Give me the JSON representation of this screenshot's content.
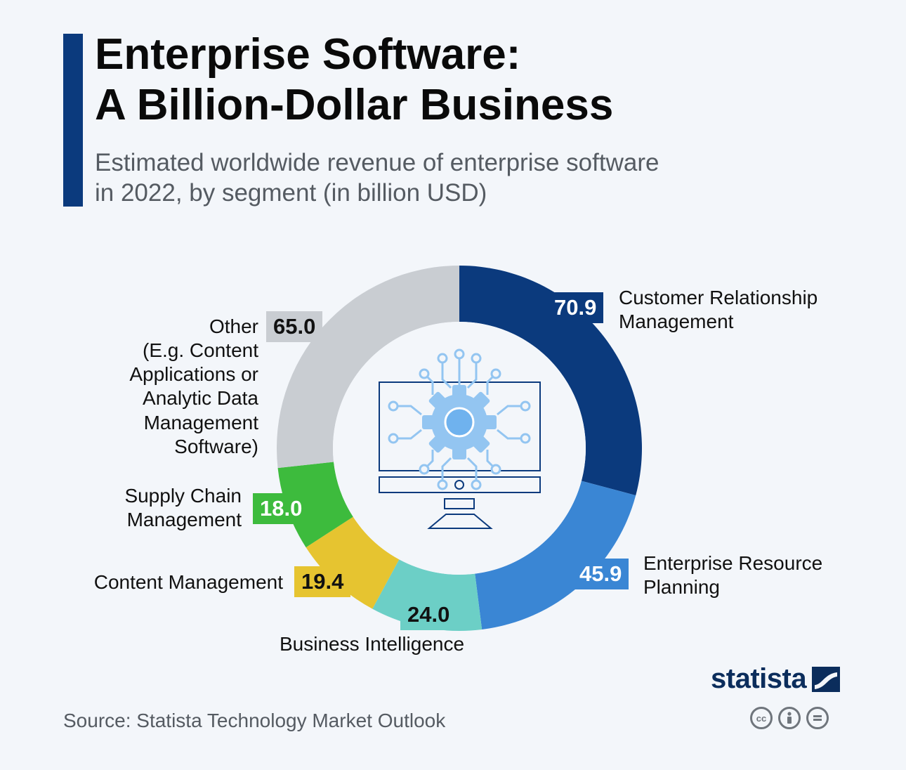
{
  "header": {
    "title_line1": "Enterprise Software:",
    "title_line2": "A Billion-Dollar Business",
    "subtitle_line1": "Estimated worldwide revenue of enterprise software",
    "subtitle_line2": "in 2022, by segment (in billion USD)"
  },
  "chart_data": {
    "type": "pie",
    "variant": "donut",
    "title": "Enterprise Software: A Billion-Dollar Business",
    "subtitle": "Estimated worldwide revenue of enterprise software in 2022, by segment (in billion USD)",
    "legend": "none (direct labels)",
    "segments": [
      {
        "name": "Customer Relationship Management",
        "value": 70.9,
        "display": "70.9",
        "color": "#0b3a7d",
        "text_color": "#ffffff",
        "label_lines": [
          "Customer Relationship",
          "Management"
        ]
      },
      {
        "name": "Enterprise Resource Planning",
        "value": 45.9,
        "display": "45.9",
        "color": "#3a86d4",
        "text_color": "#ffffff",
        "label_lines": [
          "Enterprise Resource",
          "Planning"
        ]
      },
      {
        "name": "Business Intelligence",
        "value": 24.0,
        "display": "24.0",
        "color": "#6ccfc6",
        "text_color": "#111111",
        "label_lines": [
          "Business Intelligence"
        ]
      },
      {
        "name": "Content Management",
        "value": 19.4,
        "display": "19.4",
        "color": "#e6c430",
        "text_color": "#111111",
        "label_lines": [
          "Content Management"
        ]
      },
      {
        "name": "Supply Chain Management",
        "value": 18.0,
        "display": "18.0",
        "color": "#3dbb3d",
        "text_color": "#ffffff",
        "label_lines": [
          "Supply Chain",
          "Management"
        ]
      },
      {
        "name": "Other (E.g. Content Applications or Analytic Data Management Software)",
        "value": 65.0,
        "display": "65.0",
        "color": "#c9cdd2",
        "text_color": "#111111",
        "label_lines": [
          "Other",
          "(E.g. Content",
          "Applications or",
          "Analytic Data",
          "Management",
          "Software)"
        ]
      }
    ]
  },
  "center_icon": "computer-chip-gear-icon",
  "footer": {
    "source": "Source: Statista Technology Market Outlook",
    "logo": "statista",
    "license_icons": [
      "cc-icon",
      "by-icon",
      "nd-icon"
    ]
  }
}
